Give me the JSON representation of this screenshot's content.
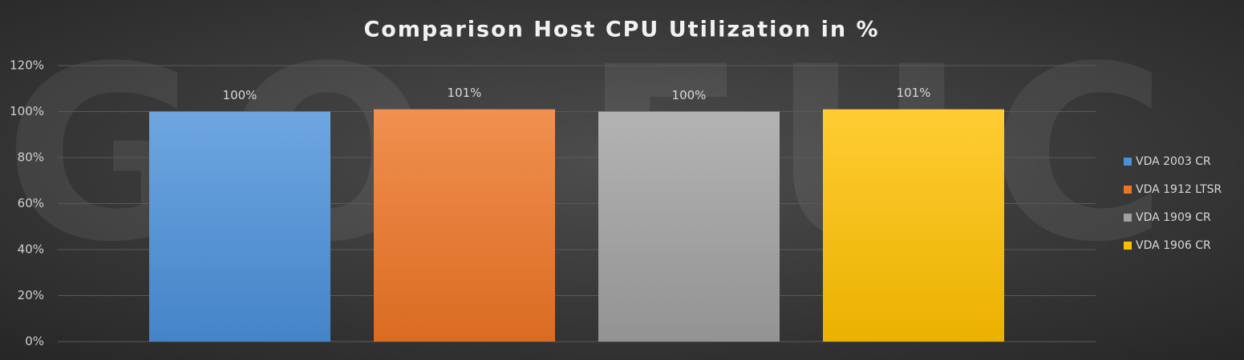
{
  "chart_data": {
    "type": "bar",
    "title": "Comparison Host CPU Utilization in %",
    "watermark": "GO-EUC",
    "categories": [
      null
    ],
    "series": [
      {
        "name": "VDA 2003 CR",
        "color": "#4a90d9",
        "values": [
          100
        ],
        "value_labels": [
          "100%"
        ]
      },
      {
        "name": "VDA 1912 LTSR",
        "color": "#ed7424",
        "values": [
          101
        ],
        "value_labels": [
          "101%"
        ]
      },
      {
        "name": "VDA 1909 CR",
        "color": "#a0a0a0",
        "values": [
          100
        ],
        "value_labels": [
          "100%"
        ]
      },
      {
        "name": "VDA 1906 CR",
        "color": "#ffc000",
        "values": [
          101
        ],
        "value_labels": [
          "101%"
        ]
      }
    ],
    "ylim": [
      0,
      120
    ],
    "yticks": [
      {
        "value": 0,
        "label": "0%"
      },
      {
        "value": 20,
        "label": "20%"
      },
      {
        "value": 40,
        "label": "40%"
      },
      {
        "value": 60,
        "label": "60%"
      },
      {
        "value": 80,
        "label": "80%"
      },
      {
        "value": 100,
        "label": "100%"
      },
      {
        "value": 120,
        "label": "120%"
      }
    ],
    "grid": true,
    "legend": "right"
  }
}
